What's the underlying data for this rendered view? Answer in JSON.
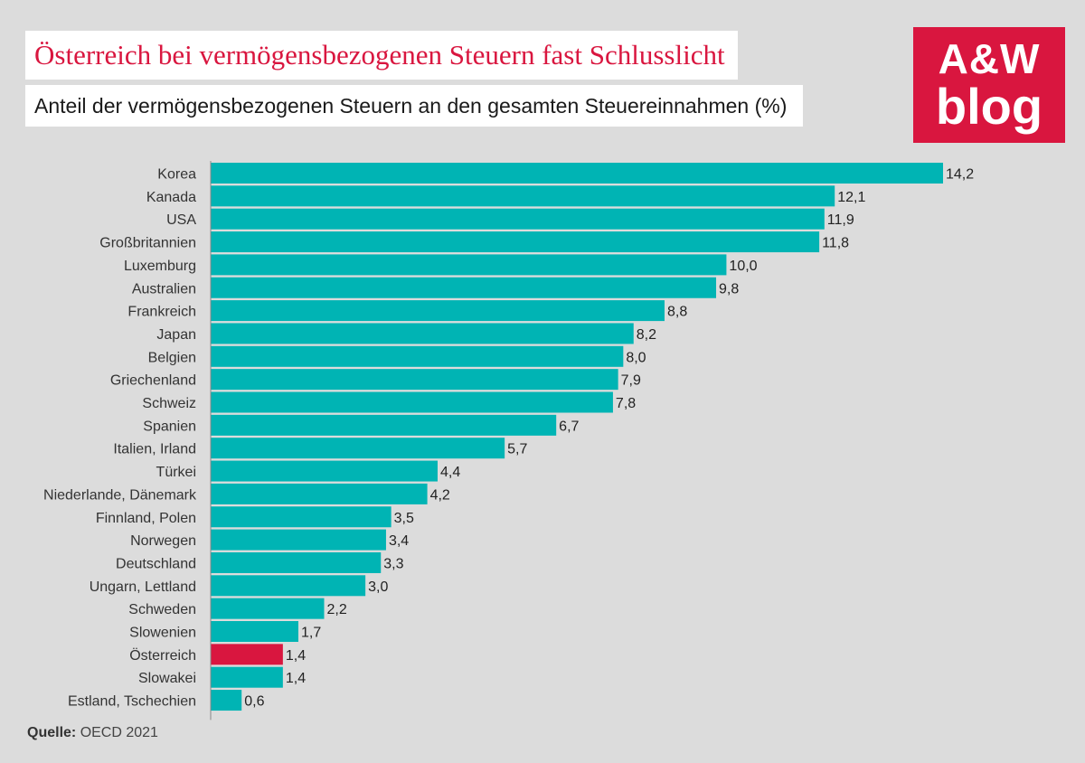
{
  "header": {
    "title": "Österreich bei vermögensbezogenen Steuern fast Schlusslicht",
    "subtitle": "Anteil der vermögensbezogenen Steuern an den gesamten Steuereinnahmen (%)"
  },
  "logo": {
    "line1": "A&W",
    "line2": "blog",
    "color": "#d9163f"
  },
  "source": {
    "label": "Quelle:",
    "text": "OECD 2021"
  },
  "colors": {
    "bar": "#00b4b4",
    "highlight": "#d9163f",
    "background": "#dcdcdc"
  },
  "chart_data": {
    "type": "bar",
    "orientation": "horizontal",
    "categories": [
      "Korea",
      "Kanada",
      "USA",
      "Großbritannien",
      "Luxemburg",
      "Australien",
      "Frankreich",
      "Japan",
      "Belgien",
      "Griechenland",
      "Schweiz",
      "Spanien",
      "Italien, Irland",
      "Türkei",
      "Niederlande, Dänemark",
      "Finnland, Polen",
      "Norwegen",
      "Deutschland",
      "Ungarn, Lettland",
      "Schweden",
      "Slowenien",
      "Österreich",
      "Slowakei",
      "Estland, Tschechien"
    ],
    "values": [
      14.2,
      12.1,
      11.9,
      11.8,
      10.0,
      9.8,
      8.8,
      8.2,
      8.0,
      7.9,
      7.8,
      6.7,
      5.7,
      4.4,
      4.2,
      3.5,
      3.4,
      3.3,
      3.0,
      2.2,
      1.7,
      1.4,
      1.4,
      0.6
    ],
    "value_labels": [
      "14,2",
      "12,1",
      "11,9",
      "11,8",
      "10,0",
      "9,8",
      "8,8",
      "8,2",
      "8,0",
      "7,9",
      "7,8",
      "6,7",
      "5,7",
      "4,4",
      "4,2",
      "3,5",
      "3,4",
      "3,3",
      "3,0",
      "2,2",
      "1,7",
      "1,4",
      "1,4",
      "0,6"
    ],
    "highlight": "Österreich",
    "xlim": [
      0,
      14.2
    ],
    "grid": false,
    "legend": "none"
  }
}
